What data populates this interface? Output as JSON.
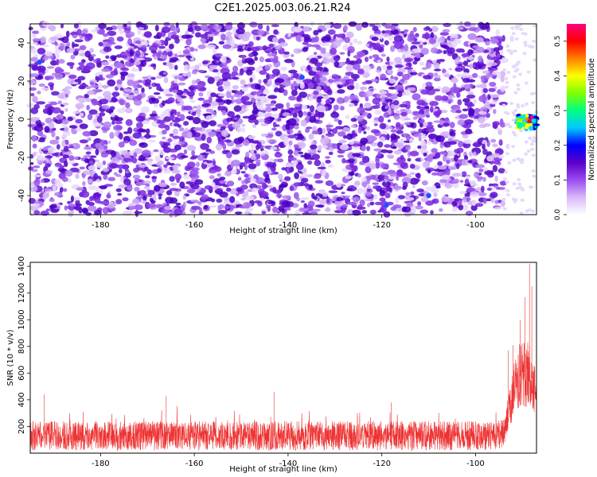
{
  "title": "C2E1.2025.003.06.21.R24",
  "chart_data": [
    {
      "type": "heatmap",
      "xlabel": "Height of straight line (km)",
      "ylabel": "Frequency (Hz)",
      "xlim": [
        -195,
        -87
      ],
      "ylim": [
        -50,
        50
      ],
      "xticks": [
        -180,
        -160,
        -140,
        -120,
        -100
      ],
      "yticks": [
        -40,
        -20,
        0,
        20,
        40
      ],
      "colorbar": {
        "label": "Normalized spectral amplitude",
        "range": [
          0,
          0.55
        ],
        "ticks": [
          0.0,
          0.1,
          0.2,
          0.3,
          0.4,
          0.5
        ],
        "colors": [
          "#ffffff",
          "#d8b8f8",
          "#9b4bf0",
          "#5a00c8",
          "#0000ff",
          "#00c8ff",
          "#00ff80",
          "#80ff00",
          "#ffff00",
          "#ff8000",
          "#ff0000",
          "#ff0080"
        ]
      },
      "features": {
        "noise_region_x": [
          -195,
          -94
        ],
        "quiet_region_x": [
          -94,
          -91
        ],
        "signal_blob": {
          "x": [
            -91,
            -87
          ],
          "freq": [
            -5,
            2
          ],
          "peak": 0.55
        }
      }
    },
    {
      "type": "line",
      "xlabel": "Height of straight line (km)",
      "ylabel": "SNR (10 * v/v)",
      "xlim": [
        -195,
        -87
      ],
      "ylim": [
        0,
        1430
      ],
      "xticks": [
        -180,
        -160,
        -140,
        -120,
        -100
      ],
      "yticks": [
        200,
        400,
        600,
        800,
        1000,
        1200,
        1400
      ],
      "color": "#ee3333",
      "series": [
        {
          "baseline": [
            [
              -195,
              130
            ],
            [
              -96,
              130
            ],
            [
              -94,
              150
            ],
            [
              -93,
              300
            ],
            [
              -92,
              450
            ],
            [
              -91,
              550
            ],
            [
              -90,
              600
            ],
            [
              -89,
              620
            ],
            [
              -88,
              560
            ],
            [
              -87,
              400
            ]
          ],
          "noise_amplitude": 110,
          "spikes": [
            {
              "x": -192,
              "y": 440
            },
            {
              "x": -166,
              "y": 430
            },
            {
              "x": -143,
              "y": 460
            },
            {
              "x": -118,
              "y": 380
            },
            {
              "x": -93,
              "y": 770
            },
            {
              "x": -92,
              "y": 810
            },
            {
              "x": -90.5,
              "y": 1000
            },
            {
              "x": -89.5,
              "y": 1170
            },
            {
              "x": -88.5,
              "y": 1420
            },
            {
              "x": -88,
              "y": 1250
            }
          ]
        }
      ]
    }
  ]
}
